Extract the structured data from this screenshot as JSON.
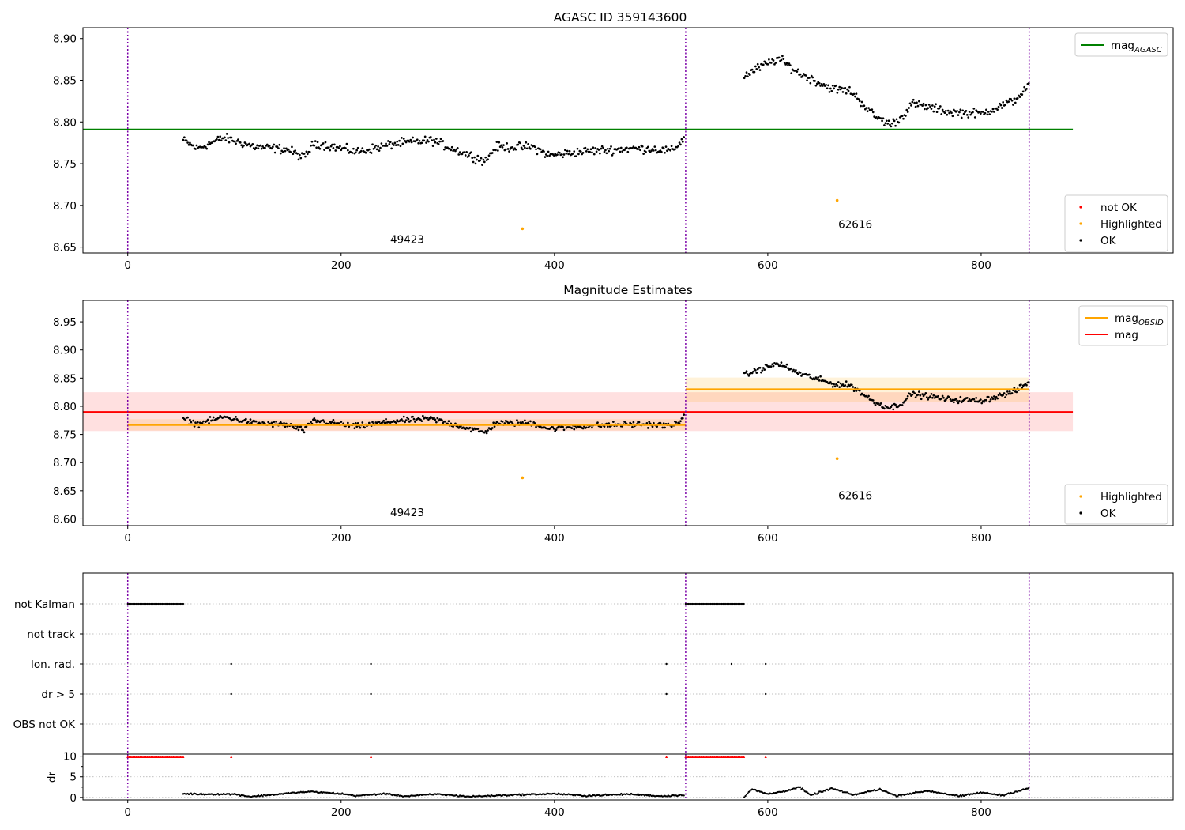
{
  "colors": {
    "ok": "#000000",
    "not_ok": "#ff0000",
    "highlighted": "#ffa500",
    "agasc_line": "#008000",
    "mag_line": "#ff0000",
    "obsid_line": "#ffa500",
    "obs_boundary": "#7b00a8"
  },
  "chart_data": [
    {
      "id": "agasc",
      "type": "scatter",
      "title": "AGASC ID 359143600",
      "xlim": [
        -42,
        980
      ],
      "ylim": [
        8.643,
        8.913
      ],
      "xticks": [
        0,
        200,
        400,
        600,
        800
      ],
      "xtick_labels": [
        "0",
        "200",
        "400",
        "600",
        "800"
      ],
      "yticks": [
        8.65,
        8.7,
        8.75,
        8.8,
        8.85,
        8.9
      ],
      "ytick_labels": [
        "8.65",
        "8.70",
        "8.75",
        "8.80",
        "8.85",
        "8.90"
      ],
      "obs_boundaries": [
        0,
        523,
        845
      ],
      "obsid_labels": [
        {
          "text": "49423",
          "x": 262,
          "y": 8.655
        },
        {
          "text": "62616",
          "x": 682,
          "y": 8.673
        }
      ],
      "hlines": [
        {
          "name": "mag_AGASC",
          "y": 8.791,
          "x_range": [
            -42,
            886
          ]
        }
      ],
      "highlighted_points": [
        {
          "x": 370,
          "y": 8.672
        },
        {
          "x": 665,
          "y": 8.706
        }
      ],
      "ok_series": [
        {
          "x_start": 52,
          "x_end": 522,
          "profile": [
            [
              52,
              8.778
            ],
            [
              65,
              8.768
            ],
            [
              90,
              8.781
            ],
            [
              120,
              8.77
            ],
            [
              150,
              8.767
            ],
            [
              165,
              8.757
            ],
            [
              175,
              8.775
            ],
            [
              215,
              8.764
            ],
            [
              250,
              8.774
            ],
            [
              285,
              8.778
            ],
            [
              315,
              8.763
            ],
            [
              335,
              8.753
            ],
            [
              345,
              8.77
            ],
            [
              380,
              8.77
            ],
            [
              395,
              8.76
            ],
            [
              430,
              8.765
            ],
            [
              470,
              8.768
            ],
            [
              490,
              8.768
            ],
            [
              510,
              8.765
            ],
            [
              522,
              8.781
            ]
          ],
          "noise": 0.0045
        },
        {
          "x_start": 578,
          "x_end": 845,
          "profile": [
            [
              578,
              8.855
            ],
            [
              590,
              8.864
            ],
            [
              610,
              8.876
            ],
            [
              630,
              8.858
            ],
            [
              660,
              8.84
            ],
            [
              678,
              8.837
            ],
            [
              700,
              8.807
            ],
            [
              715,
              8.797
            ],
            [
              725,
              8.805
            ],
            [
              735,
              8.822
            ],
            [
              770,
              8.812
            ],
            [
              800,
              8.81
            ],
            [
              830,
              8.825
            ],
            [
              845,
              8.843
            ]
          ],
          "noise": 0.0045
        }
      ],
      "legend_top": [
        {
          "label": "mag",
          "sub": "AGASC",
          "kind": "line",
          "color": "#008000"
        }
      ],
      "legend_bottom": [
        {
          "label": "not OK",
          "kind": "point",
          "color": "#ff0000"
        },
        {
          "label": "Highlighted",
          "kind": "point",
          "color": "#ffa500"
        },
        {
          "label": "OK",
          "kind": "point",
          "color": "#000000"
        }
      ]
    },
    {
      "id": "estimates",
      "type": "scatter",
      "title": "Magnitude Estimates",
      "xlim": [
        -42,
        980
      ],
      "ylim": [
        8.588,
        8.988
      ],
      "xticks": [
        0,
        200,
        400,
        600,
        800
      ],
      "xtick_labels": [
        "0",
        "200",
        "400",
        "600",
        "800"
      ],
      "yticks": [
        8.6,
        8.65,
        8.7,
        8.75,
        8.8,
        8.85,
        8.9,
        8.95
      ],
      "ytick_labels": [
        "8.60",
        "8.65",
        "8.70",
        "8.75",
        "8.80",
        "8.85",
        "8.90",
        "8.95"
      ],
      "obs_boundaries": [
        0,
        523,
        845
      ],
      "obsid_labels": [
        {
          "text": "49423",
          "x": 262,
          "y": 8.605
        },
        {
          "text": "62616",
          "x": 682,
          "y": 8.635
        }
      ],
      "mag": {
        "value": 8.79,
        "band": [
          8.756,
          8.825
        ],
        "x_range": [
          -42,
          886
        ]
      },
      "obsid_mags": [
        {
          "value": 8.767,
          "band": [
            8.757,
            8.777
          ],
          "x_range": [
            0,
            523
          ]
        },
        {
          "value": 8.83,
          "band": [
            8.808,
            8.851
          ],
          "x_range": [
            523,
            845
          ]
        }
      ],
      "highlighted_points": [
        {
          "x": 370,
          "y": 8.673
        },
        {
          "x": 665,
          "y": 8.707
        }
      ],
      "ok_series": [
        {
          "x_start": 52,
          "x_end": 522,
          "profile": [
            [
              52,
              8.778
            ],
            [
              65,
              8.768
            ],
            [
              90,
              8.781
            ],
            [
              120,
              8.77
            ],
            [
              150,
              8.767
            ],
            [
              165,
              8.757
            ],
            [
              175,
              8.775
            ],
            [
              215,
              8.764
            ],
            [
              250,
              8.774
            ],
            [
              285,
              8.778
            ],
            [
              315,
              8.763
            ],
            [
              335,
              8.753
            ],
            [
              345,
              8.77
            ],
            [
              380,
              8.77
            ],
            [
              395,
              8.76
            ],
            [
              430,
              8.765
            ],
            [
              470,
              8.768
            ],
            [
              490,
              8.768
            ],
            [
              510,
              8.765
            ],
            [
              522,
              8.781
            ]
          ],
          "noise": 0.0045
        },
        {
          "x_start": 578,
          "x_end": 845,
          "profile": [
            [
              578,
              8.855
            ],
            [
              590,
              8.864
            ],
            [
              610,
              8.876
            ],
            [
              630,
              8.858
            ],
            [
              660,
              8.84
            ],
            [
              678,
              8.837
            ],
            [
              700,
              8.807
            ],
            [
              715,
              8.797
            ],
            [
              725,
              8.805
            ],
            [
              735,
              8.822
            ],
            [
              770,
              8.812
            ],
            [
              800,
              8.81
            ],
            [
              830,
              8.825
            ],
            [
              845,
              8.843
            ]
          ],
          "noise": 0.0045
        }
      ],
      "legend_top": [
        {
          "label": "mag",
          "sub": "OBSID",
          "kind": "line",
          "color": "#ffa500"
        },
        {
          "label": "mag",
          "sub": "",
          "kind": "line",
          "color": "#ff0000"
        }
      ],
      "legend_bottom": [
        {
          "label": "Highlighted",
          "kind": "point",
          "color": "#ffa500"
        },
        {
          "label": "OK",
          "kind": "point",
          "color": "#000000"
        }
      ]
    },
    {
      "id": "flags",
      "type": "scatter",
      "title": "",
      "xlim": [
        -42,
        980
      ],
      "categories": [
        "not Kalman",
        "not track",
        "Ion. rad.",
        "dr > 5",
        "OBS not OK"
      ],
      "obs_boundaries": [
        0,
        523,
        845
      ],
      "flag_ranges": {
        "not Kalman": [
          [
            0,
            52
          ],
          [
            523,
            578
          ]
        ],
        "not track": [],
        "OBS not OK": []
      },
      "flag_points": {
        "Ion. rad.": [
          97,
          228,
          505,
          566,
          598
        ],
        "dr > 5": [
          97,
          228,
          505,
          598
        ]
      }
    },
    {
      "id": "dr",
      "type": "scatter",
      "title": "",
      "ylabel": "dr",
      "xlim": [
        -42,
        980
      ],
      "ylim": [
        -0.6,
        10.5
      ],
      "yticks": [
        0,
        5,
        10
      ],
      "ytick_labels": [
        "0",
        "5",
        "10"
      ],
      "xticks": [
        0,
        200,
        400,
        600,
        800
      ],
      "xtick_labels": [
        "0",
        "200",
        "400",
        "600",
        "800"
      ],
      "obs_boundaries": [
        0,
        523,
        845
      ],
      "not_ok_ranges": [
        [
          0,
          52
        ],
        [
          523,
          578
        ]
      ],
      "not_ok_points": [
        97,
        228,
        505,
        598
      ],
      "not_ok_value": 9.8,
      "ok_series": [
        {
          "x_start": 52,
          "x_end": 522,
          "profile": [
            [
              52,
              0.9
            ],
            [
              70,
              0.8
            ],
            [
              100,
              0.8
            ],
            [
              115,
              0.2
            ],
            [
              150,
              1.0
            ],
            [
              170,
              1.4
            ],
            [
              200,
              0.9
            ],
            [
              215,
              0.4
            ],
            [
              240,
              0.9
            ],
            [
              260,
              0.3
            ],
            [
              290,
              0.8
            ],
            [
              320,
              0.2
            ],
            [
              360,
              0.6
            ],
            [
              400,
              0.9
            ],
            [
              430,
              0.4
            ],
            [
              470,
              0.8
            ],
            [
              500,
              0.3
            ],
            [
              522,
              0.6
            ]
          ],
          "noise": 0.15
        },
        {
          "x_start": 578,
          "x_end": 845,
          "profile": [
            [
              578,
              0.2
            ],
            [
              585,
              2.0
            ],
            [
              600,
              0.8
            ],
            [
              615,
              1.5
            ],
            [
              630,
              2.5
            ],
            [
              640,
              0.5
            ],
            [
              660,
              2.2
            ],
            [
              680,
              0.6
            ],
            [
              705,
              2.0
            ],
            [
              720,
              0.4
            ],
            [
              750,
              1.6
            ],
            [
              780,
              0.3
            ],
            [
              800,
              1.2
            ],
            [
              820,
              0.5
            ],
            [
              845,
              2.3
            ]
          ],
          "noise": 0.15
        }
      ]
    }
  ]
}
